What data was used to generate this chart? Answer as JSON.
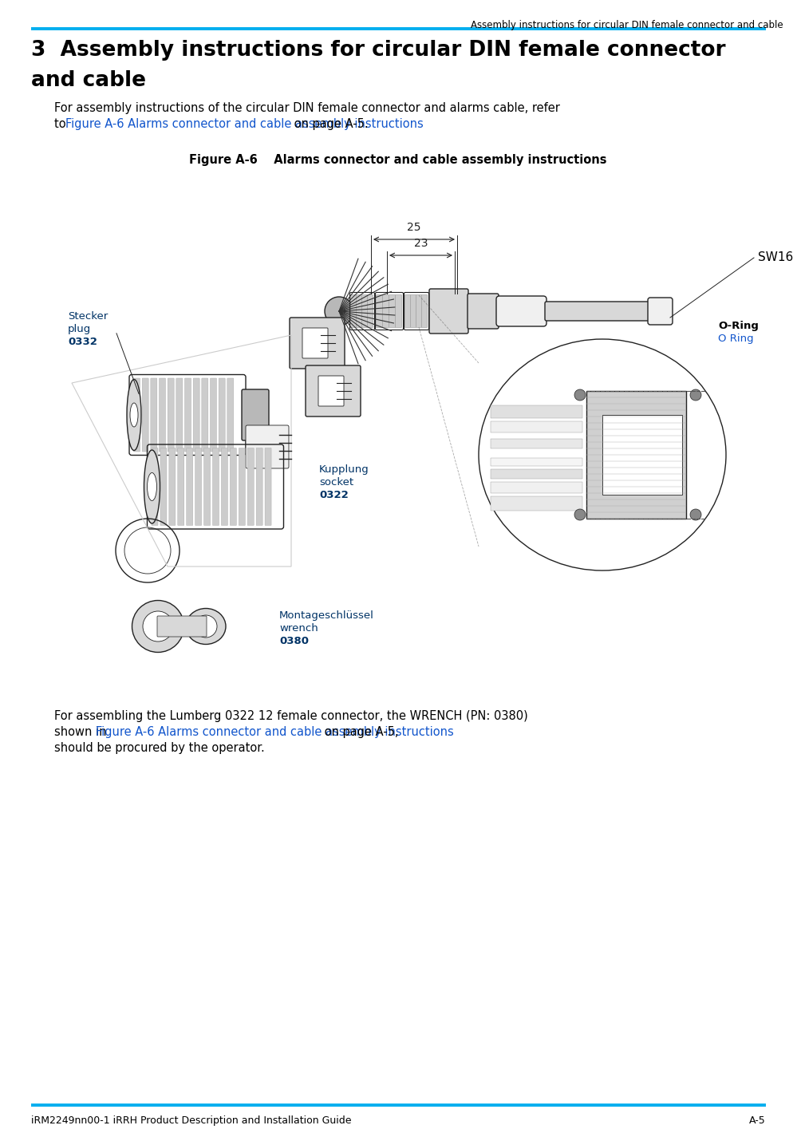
{
  "header_text": "Assembly instructions for circular DIN female connector and cable",
  "header_line_color": "#00AEEF",
  "section_title_line1": "3  Assembly instructions for circular DIN female connector",
  "section_title_line2": "and cable",
  "body_text_1a": "For assembly instructions of the circular DIN female connector and alarms cable, refer",
  "body_text_1b_prefix": "to ",
  "body_text_1b_link": "Figure A-6 Alarms connector and cable assembly instructions",
  "body_text_1b_suffix": " on page A-5.",
  "link_color": "#1155CC",
  "figure_caption": "Figure A-6    Alarms connector and cable assembly instructions",
  "body_text_2a": "For assembling the Lumberg 0322 12 female connector, the WRENCH (PN: 0380)",
  "body_text_2b_prefix": "shown in ",
  "body_text_2b_link": "Figure A-6 Alarms connector and cable assembly instructions",
  "body_text_2b_suffix": " on page A-5,",
  "body_text_2c": "should be procured by the operator.",
  "footer_line_color": "#00AEEF",
  "footer_left": "iRM2249nn00-1 iRRH Product Description and Installation Guide",
  "footer_right": "A-5",
  "bg_color": "#FFFFFF",
  "text_color": "#000000",
  "label_stecker": [
    "Stecker",
    "plug",
    "0332"
  ],
  "label_kupplung": [
    "Kupplung",
    "socket",
    "0322"
  ],
  "label_montageschluessel": [
    "Montageschlüssel",
    "wrench",
    "0380"
  ],
  "label_oring1": "O-Ring",
  "label_oring2": "O Ring",
  "label_sw16": "SW16",
  "label_23": "23",
  "label_25": "25"
}
